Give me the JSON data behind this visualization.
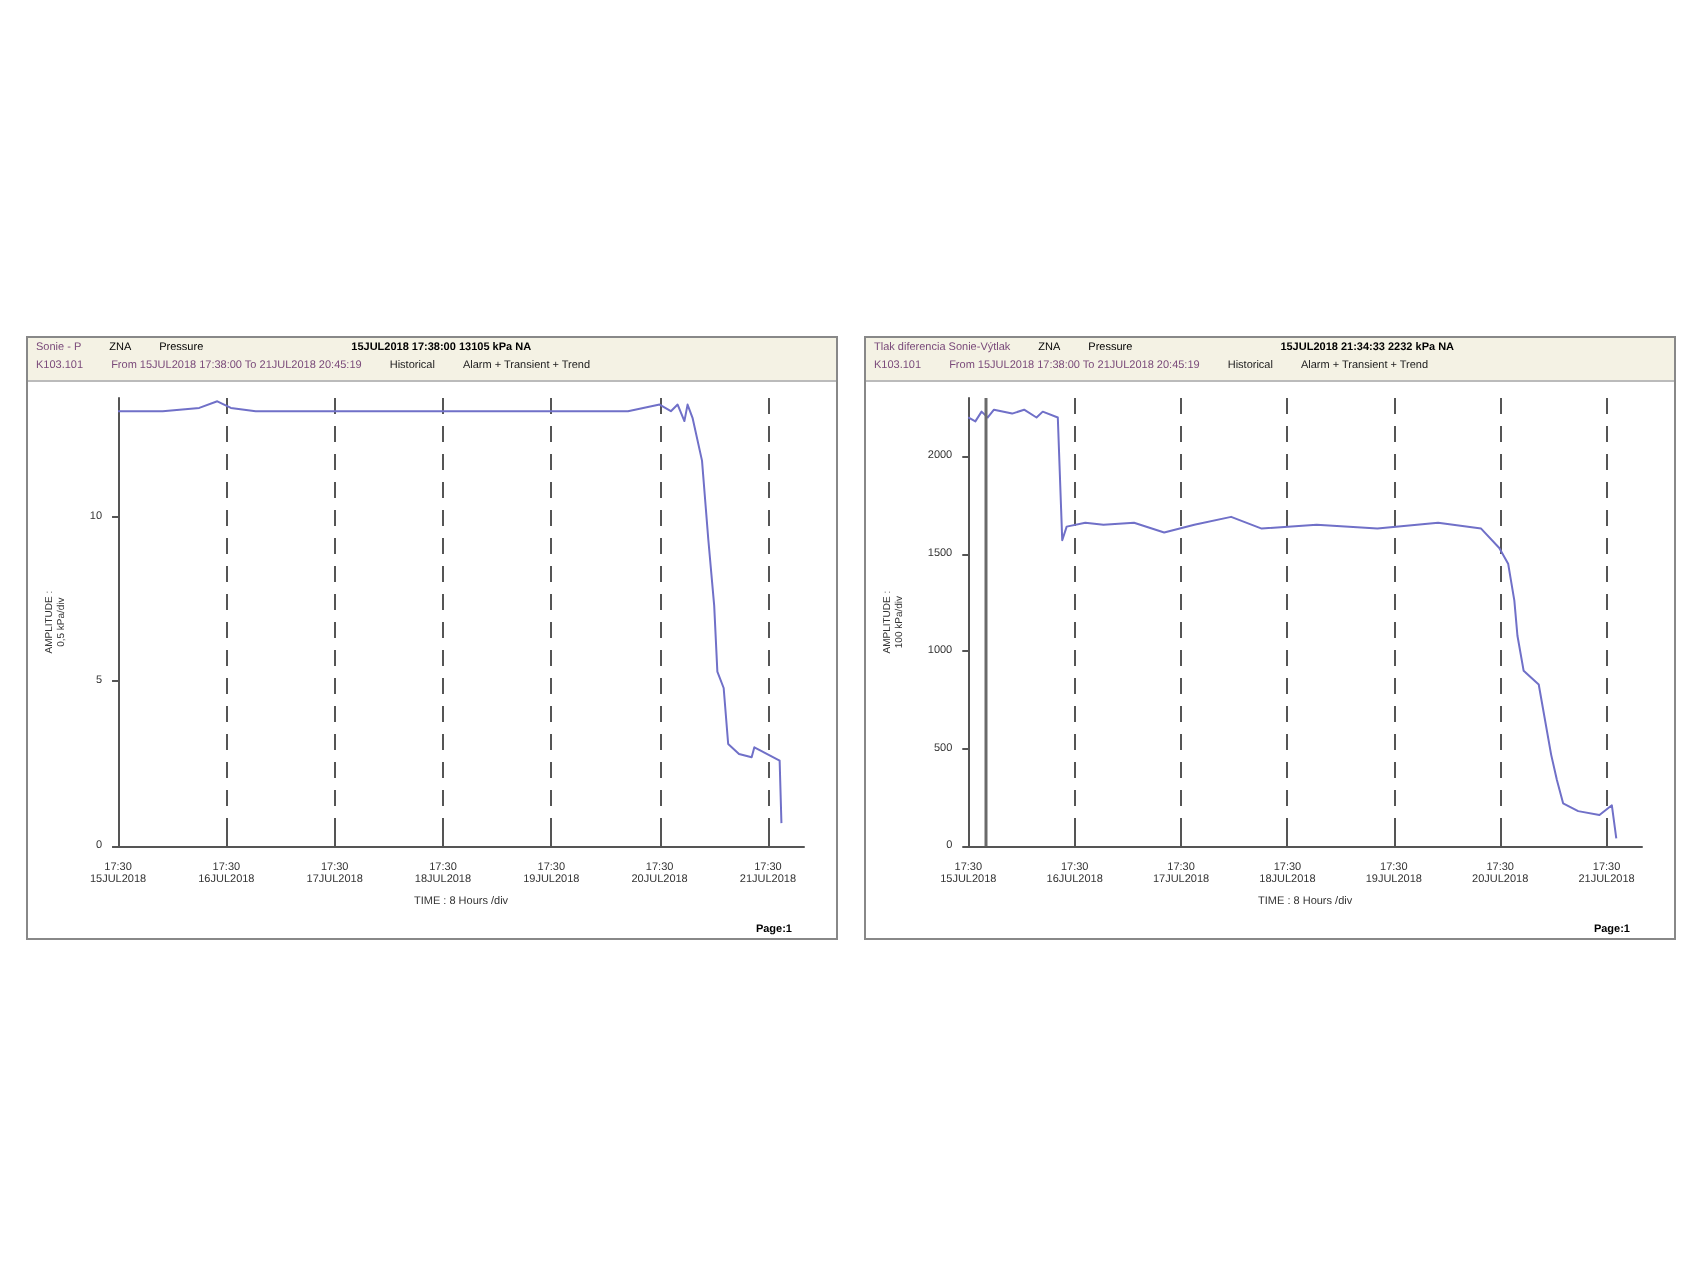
{
  "chart_data": [
    {
      "type": "line",
      "title": "Sonie - P",
      "annotations": [
        "ZNA",
        "Pressure",
        "15JUL2018 17:38:00 13105 kPa NA",
        "K103.101",
        "From 15JUL2018 17:38:00 To 21JUL2018 20:45:19",
        "Historical",
        "Alarm + Transient + Trend",
        "Page:1"
      ],
      "xlabel": "TIME : 8 Hours /div",
      "ylabel": "AMPLITUDE :\n0,5 kPa/div",
      "xlim": [
        "2018-07-15T17:30",
        "2018-07-22T01:30"
      ],
      "xticks": [
        {
          "value": "2018-07-15T17:30",
          "label": "17:30\n15JUL2018"
        },
        {
          "value": "2018-07-16T17:30",
          "label": "17:30\n16JUL2018"
        },
        {
          "value": "2018-07-17T17:30",
          "label": "17:30\n17JUL2018"
        },
        {
          "value": "2018-07-18T17:30",
          "label": "17:30\n18JUL2018"
        },
        {
          "value": "2018-07-19T17:30",
          "label": "17:30\n19JUL2018"
        },
        {
          "value": "2018-07-20T17:30",
          "label": "17:30\n20JUL2018"
        },
        {
          "value": "2018-07-21T17:30",
          "label": "17:30\n21JUL2018"
        }
      ],
      "ylim": [
        0,
        13.6
      ],
      "yticks": [
        0,
        5,
        10
      ],
      "grid": "x",
      "series": [
        {
          "color": "#7070c8",
          "x": [
            "2018-07-15T17:30",
            "2018-07-16T03:24",
            "2018-07-16T11:30",
            "2018-07-16T15:30",
            "2018-07-16T18:30",
            "2018-07-17T00:00",
            "2018-07-18T03:30",
            "2018-07-19T06:54",
            "2018-07-20T10:30",
            "2018-07-20T17:30",
            "2018-07-20T20:00",
            "2018-07-20T21:30",
            "2018-07-20T23:00",
            "2018-07-20T23:42",
            "2018-07-21T00:48",
            "2018-07-21T02:54",
            "2018-07-21T04:18",
            "2018-07-21T05:36",
            "2018-07-21T06:18",
            "2018-07-21T07:42",
            "2018-07-21T08:42",
            "2018-07-21T11:06",
            "2018-07-21T13:54",
            "2018-07-21T14:30",
            "2018-07-21T20:06",
            "2018-07-21T20:30"
          ],
          "values": [
            13.2,
            13.2,
            13.3,
            13.5,
            13.3,
            13.2,
            13.2,
            13.2,
            13.2,
            13.4,
            13.2,
            13.4,
            12.9,
            13.4,
            13.0,
            11.7,
            9.3,
            7.3,
            5.3,
            4.8,
            3.1,
            2.8,
            2.7,
            3.0,
            2.6,
            0.7
          ]
        }
      ]
    },
    {
      "type": "line",
      "title": "Tlak diferencia Sonie-Výtlak",
      "annotations": [
        "ZNA",
        "Pressure",
        "15JUL2018 21:34:33 2232 kPa NA",
        "K103.101",
        "From 15JUL2018 17:38:00 To 21JUL2018 20:45:19",
        "Historical",
        "Alarm + Transient + Trend",
        "Page:1"
      ],
      "xlabel": "TIME : 8 Hours /div",
      "ylabel": "AMPLITUDE :\n100 kPa/div",
      "xlim": [
        "2018-07-15T17:30",
        "2018-07-22T01:30"
      ],
      "xticks": [
        {
          "value": "2018-07-15T17:30",
          "label": "17:30\n15JUL2018"
        },
        {
          "value": "2018-07-16T17:30",
          "label": "17:30\n16JUL2018"
        },
        {
          "value": "2018-07-17T17:30",
          "label": "17:30\n17JUL2018"
        },
        {
          "value": "2018-07-18T17:30",
          "label": "17:30\n18JUL2018"
        },
        {
          "value": "2018-07-19T17:30",
          "label": "17:30\n19JUL2018"
        },
        {
          "value": "2018-07-20T17:30",
          "label": "17:30\n20JUL2018"
        },
        {
          "value": "2018-07-21T17:30",
          "label": "17:30\n21JUL2018"
        }
      ],
      "ylim": [
        0,
        2300
      ],
      "yticks": [
        0,
        500,
        1000,
        1500,
        2000
      ],
      "grid": "x",
      "ref_lines": [
        {
          "axis": "x",
          "value": "2018-07-15T21:34",
          "color": "#6a6a6a"
        }
      ],
      "series": [
        {
          "color": "#7070c8",
          "x": [
            "2018-07-15T17:30",
            "2018-07-15T19:06",
            "2018-07-15T20:30",
            "2018-07-15T21:54",
            "2018-07-15T23:18",
            "2018-07-16T03:24",
            "2018-07-16T06:06",
            "2018-07-16T08:54",
            "2018-07-16T10:18",
            "2018-07-16T13:42",
            "2018-07-16T14:42",
            "2018-07-16T15:42",
            "2018-07-16T19:54",
            "2018-07-17T00:00",
            "2018-07-17T06:54",
            "2018-07-17T13:42",
            "2018-07-17T20:30",
            "2018-07-18T04:48",
            "2018-07-18T11:42",
            "2018-07-19T00:06",
            "2018-07-19T13:48",
            "2018-07-20T03:30",
            "2018-07-20T13:12",
            "2018-07-20T17:18",
            "2018-07-20T19:18",
            "2018-07-20T20:42",
            "2018-07-20T21:24",
            "2018-07-20T22:48",
            "2018-07-21T02:12",
            "2018-07-21T05:00",
            "2018-07-21T06:18",
            "2018-07-21T07:42",
            "2018-07-21T11:06",
            "2018-07-21T15:54",
            "2018-07-21T18:42",
            "2018-07-21T19:42"
          ],
          "values": [
            2200,
            2180,
            2230,
            2200,
            2240,
            2220,
            2240,
            2200,
            2230,
            2200,
            1570,
            1640,
            1660,
            1650,
            1660,
            1610,
            1650,
            1690,
            1630,
            1650,
            1630,
            1660,
            1630,
            1530,
            1450,
            1260,
            1080,
            900,
            830,
            470,
            340,
            220,
            180,
            160,
            210,
            40
          ]
        }
      ]
    }
  ]
}
